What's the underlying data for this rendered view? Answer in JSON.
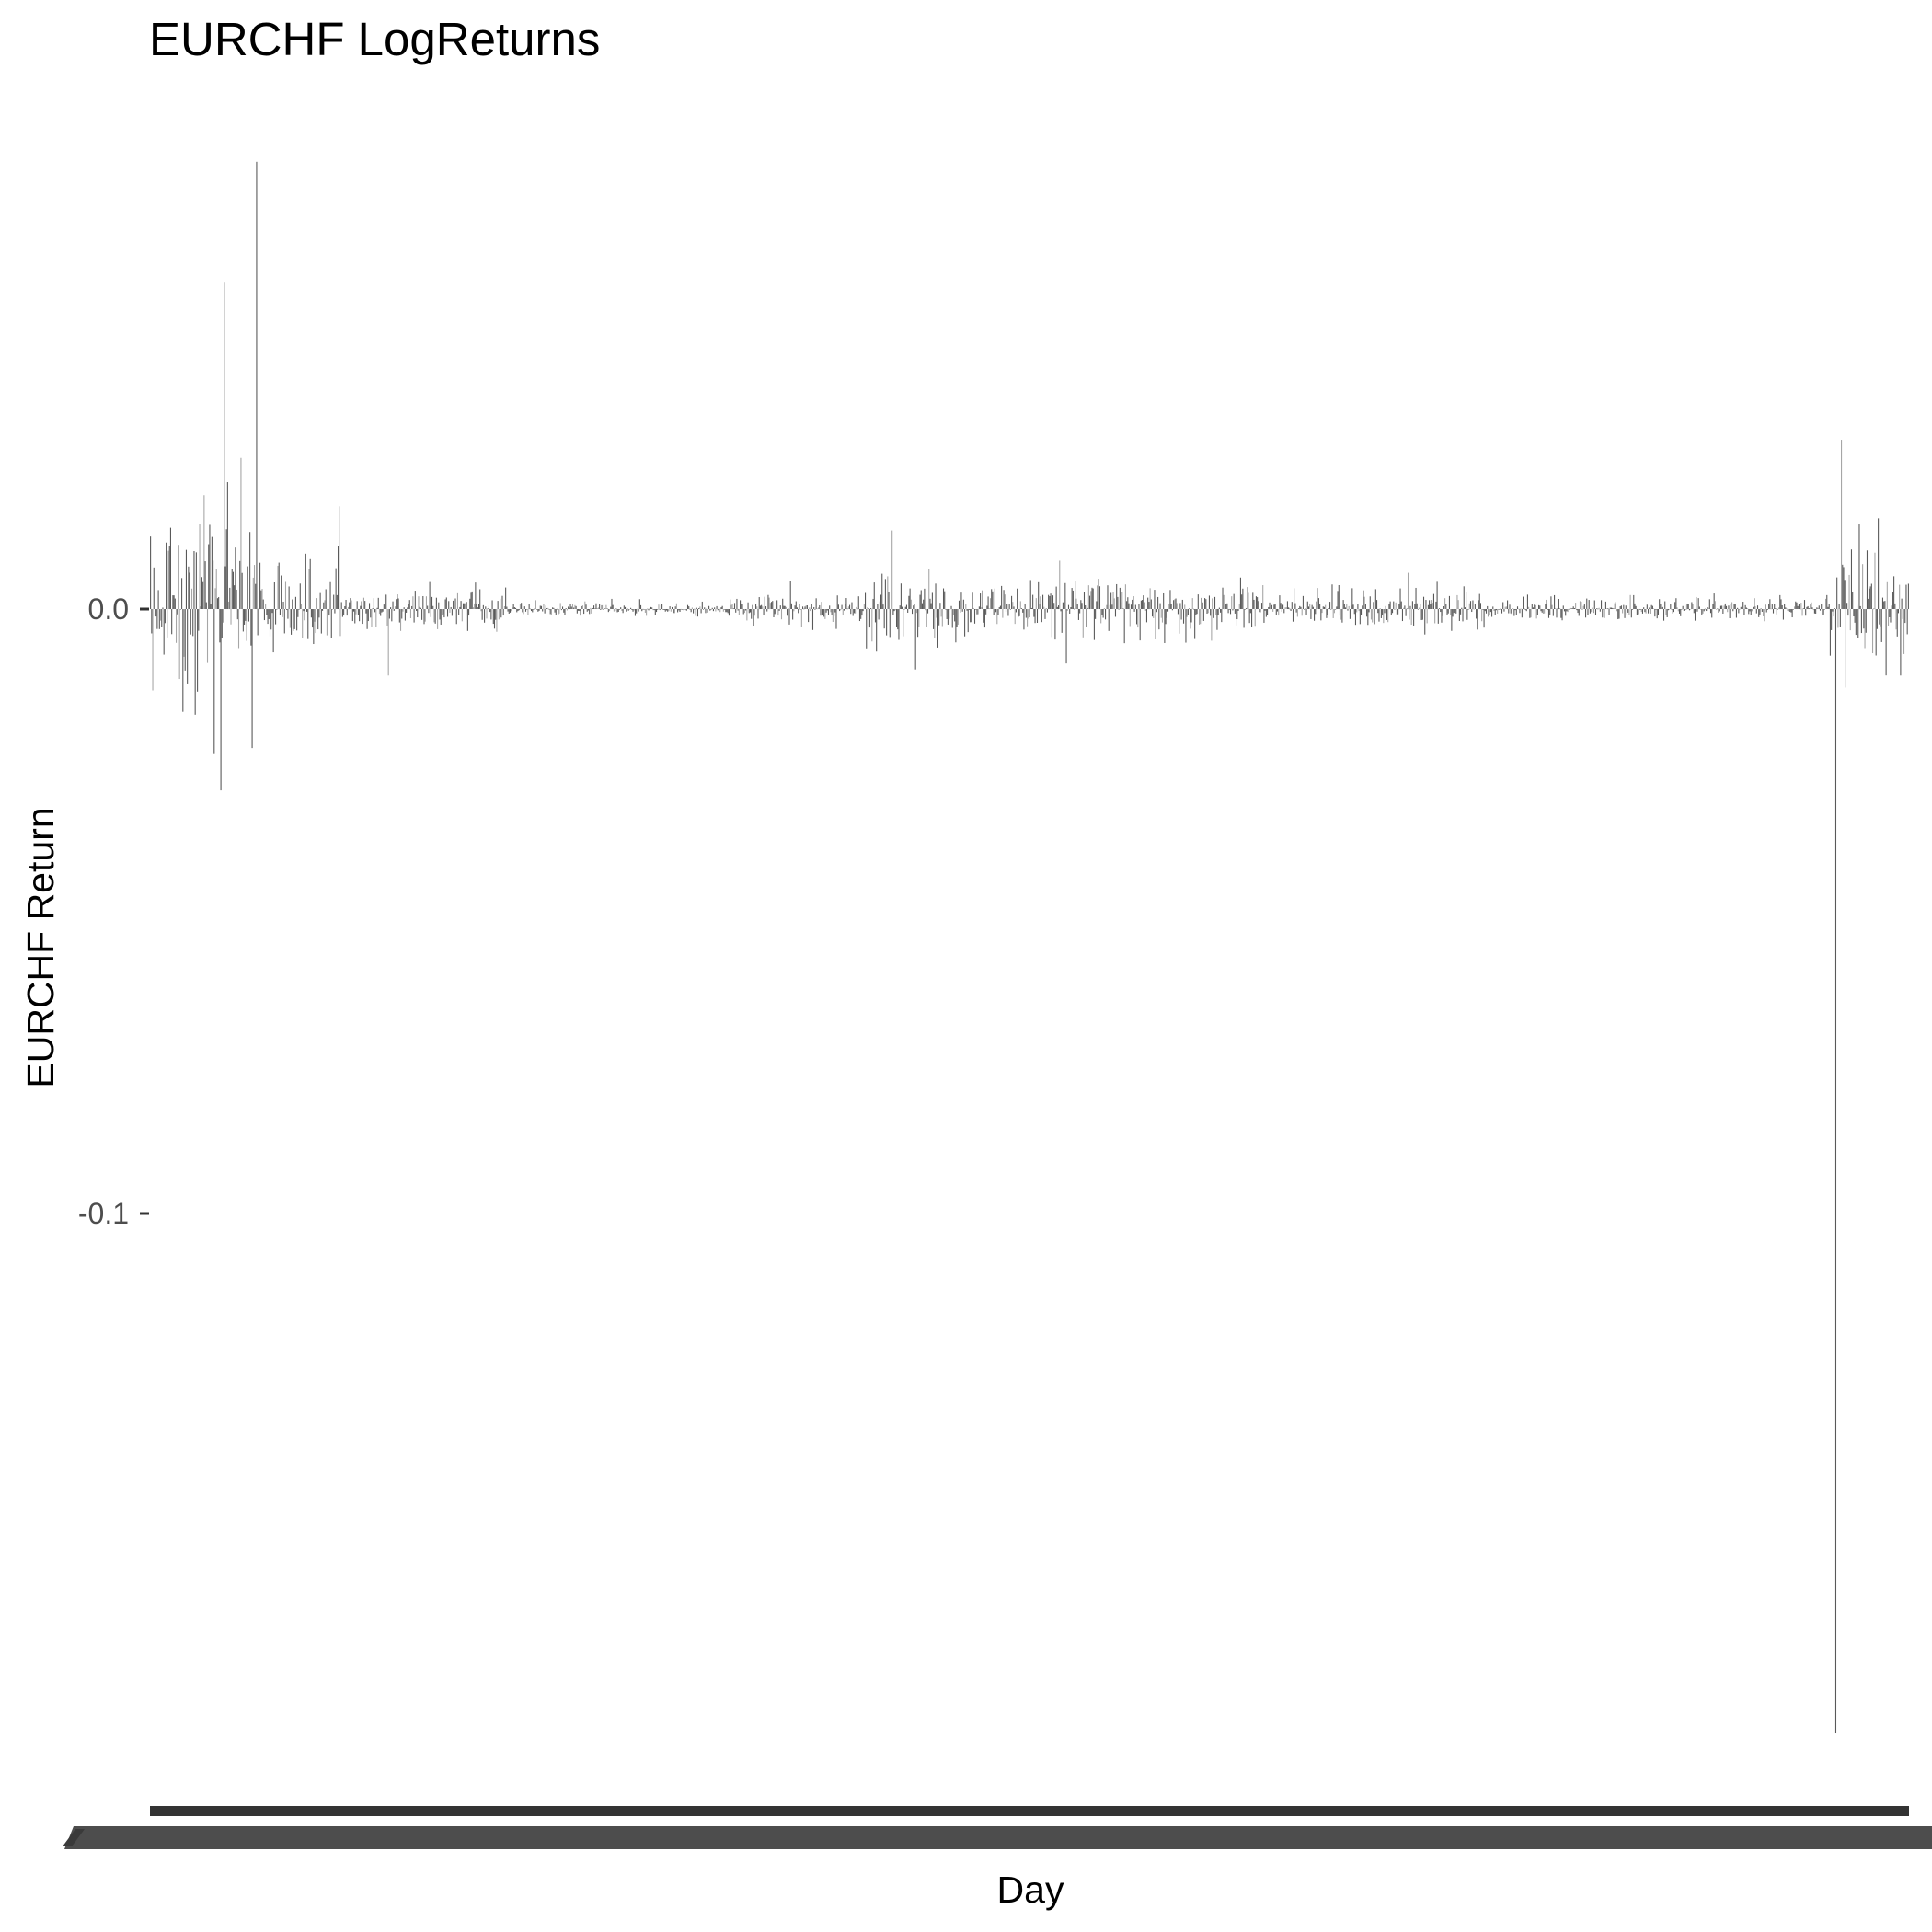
{
  "chart_data": {
    "type": "bar",
    "title": "EURCHF LogReturns",
    "xlabel": "Day",
    "ylabel": "EURCHF Return",
    "ylim": [
      -0.188,
      0.076
    ],
    "yticks": [
      {
        "value": 0.0,
        "label": "0.0"
      },
      {
        "value": -0.1,
        "label": "-0.1"
      }
    ],
    "x_tick_labels_overplotted": true,
    "n_days": 1575,
    "grid": false,
    "legend": "none",
    "colors": {
      "bar_dark": "#595959",
      "bar_light": "#a6a6a6",
      "axis": "#333333",
      "tick_label": "#4d4d4d",
      "title": "#000000"
    },
    "notable_values": [
      {
        "day": 1,
        "value": 0.012
      },
      {
        "day": 15,
        "value": 0.011
      },
      {
        "day": 30,
        "value": -0.017
      },
      {
        "day": 45,
        "value": 0.014
      },
      {
        "day": 58,
        "value": -0.024
      },
      {
        "day": 64,
        "value": -0.03
      },
      {
        "day": 67,
        "value": 0.054
      },
      {
        "day": 70,
        "value": 0.021
      },
      {
        "day": 82,
        "value": 0.025
      },
      {
        "day": 92,
        "value": -0.023
      },
      {
        "day": 96,
        "value": 0.074
      },
      {
        "day": 170,
        "value": 0.017
      },
      {
        "day": 214,
        "value": -0.011
      },
      {
        "day": 665,
        "value": 0.013
      },
      {
        "day": 686,
        "value": -0.01
      },
      {
        "day": 815,
        "value": 0.008
      },
      {
        "day": 821,
        "value": -0.009
      },
      {
        "day": 1127,
        "value": 0.006
      },
      {
        "day": 1510,
        "value": -0.186
      },
      {
        "day": 1515,
        "value": 0.028
      },
      {
        "day": 1519,
        "value": -0.013
      },
      {
        "day": 1531,
        "value": 0.014
      },
      {
        "day": 1568,
        "value": -0.011
      }
    ]
  }
}
